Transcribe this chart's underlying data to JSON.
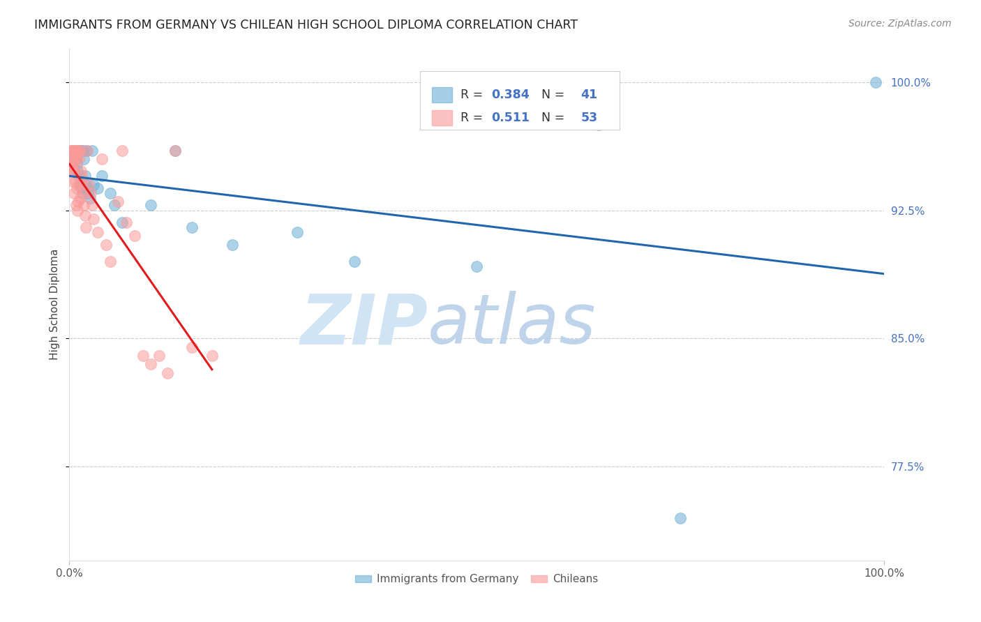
{
  "title": "IMMIGRANTS FROM GERMANY VS CHILEAN HIGH SCHOOL DIPLOMA CORRELATION CHART",
  "source": "Source: ZipAtlas.com",
  "ylabel": "High School Diploma",
  "y_tick_positions": [
    0.775,
    0.85,
    0.925,
    1.0
  ],
  "y_tick_labels": [
    "77.5%",
    "85.0%",
    "92.5%",
    "100.0%"
  ],
  "xlim": [
    0.0,
    1.0
  ],
  "ylim": [
    0.72,
    1.02
  ],
  "blue_color": "#6BAED6",
  "pink_color": "#FB9A99",
  "trend_blue": "#2166AC",
  "trend_pink": "#E31A1C",
  "watermark_zip": "ZIP",
  "watermark_atlas": "atlas",
  "watermark_color": "#D0E4F5",
  "blue_x": [
    0.001,
    0.002,
    0.003,
    0.004,
    0.005,
    0.006,
    0.007,
    0.008,
    0.009,
    0.01,
    0.011,
    0.012,
    0.013,
    0.014,
    0.015,
    0.016,
    0.017,
    0.018,
    0.019,
    0.02,
    0.021,
    0.022,
    0.023,
    0.025,
    0.028,
    0.03,
    0.035,
    0.04,
    0.05,
    0.055,
    0.065,
    0.1,
    0.13,
    0.15,
    0.2,
    0.28,
    0.35,
    0.5,
    0.65,
    0.75,
    0.99
  ],
  "blue_y": [
    0.958,
    0.953,
    0.955,
    0.96,
    0.956,
    0.948,
    0.958,
    0.955,
    0.952,
    0.948,
    0.96,
    0.945,
    0.94,
    0.96,
    0.938,
    0.935,
    0.96,
    0.955,
    0.945,
    0.94,
    0.96,
    0.938,
    0.935,
    0.932,
    0.96,
    0.94,
    0.938,
    0.945,
    0.935,
    0.928,
    0.918,
    0.928,
    0.96,
    0.915,
    0.905,
    0.912,
    0.895,
    0.892,
    0.975,
    0.745,
    1.0
  ],
  "pink_x": [
    0.001,
    0.001,
    0.002,
    0.002,
    0.003,
    0.003,
    0.004,
    0.004,
    0.005,
    0.005,
    0.006,
    0.006,
    0.007,
    0.007,
    0.008,
    0.008,
    0.009,
    0.009,
    0.01,
    0.01,
    0.011,
    0.011,
    0.012,
    0.012,
    0.013,
    0.013,
    0.014,
    0.015,
    0.016,
    0.017,
    0.018,
    0.019,
    0.02,
    0.022,
    0.024,
    0.026,
    0.028,
    0.03,
    0.035,
    0.04,
    0.045,
    0.05,
    0.06,
    0.065,
    0.07,
    0.08,
    0.09,
    0.1,
    0.11,
    0.12,
    0.13,
    0.15,
    0.175
  ],
  "pink_y": [
    0.96,
    0.955,
    0.958,
    0.948,
    0.96,
    0.95,
    0.952,
    0.942,
    0.96,
    0.948,
    0.955,
    0.935,
    0.96,
    0.942,
    0.955,
    0.928,
    0.96,
    0.938,
    0.958,
    0.925,
    0.96,
    0.93,
    0.955,
    0.94,
    0.96,
    0.932,
    0.948,
    0.945,
    0.94,
    0.935,
    0.928,
    0.922,
    0.915,
    0.96,
    0.94,
    0.935,
    0.928,
    0.92,
    0.912,
    0.955,
    0.905,
    0.895,
    0.93,
    0.96,
    0.918,
    0.91,
    0.84,
    0.835,
    0.84,
    0.83,
    0.96,
    0.845,
    0.84
  ]
}
